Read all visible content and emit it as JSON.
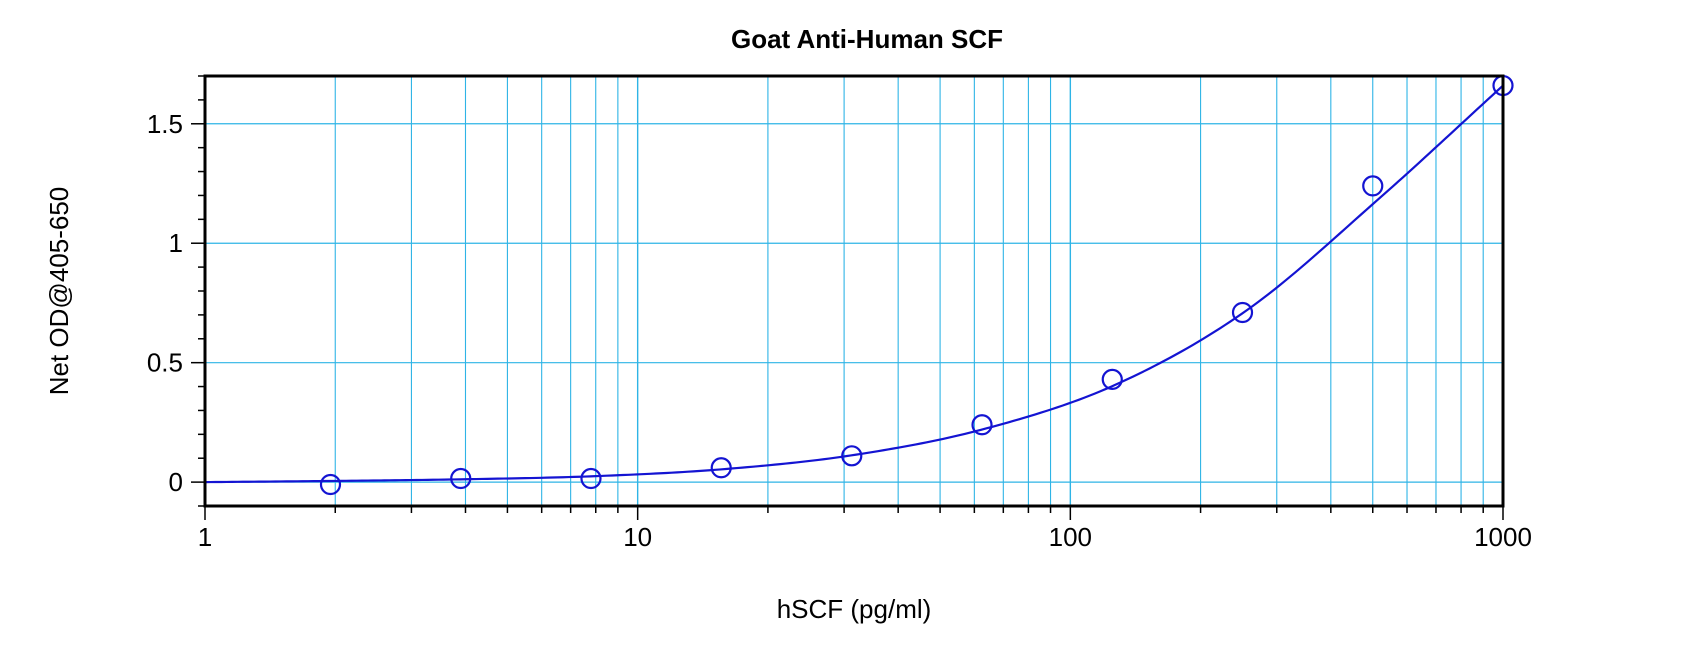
{
  "chart_data": {
    "type": "scatter",
    "title": "Goat Anti-Human SCF",
    "xlabel": "hSCF (pg/ml)",
    "ylabel": "Net OD@405-650",
    "xscale": "log",
    "xlim": [
      1,
      1000
    ],
    "ylim": [
      -0.1,
      1.7
    ],
    "x_ticks": [
      1,
      10,
      100,
      1000
    ],
    "x_tick_labels": [
      "1",
      "10",
      "100",
      "1000"
    ],
    "y_ticks": [
      0,
      0.5,
      1,
      1.5
    ],
    "y_tick_labels": [
      "0",
      "0.5",
      "1",
      "1.5"
    ],
    "grid": true,
    "legend": "none",
    "colors": {
      "points": "#1414d2",
      "curve": "#1414d2",
      "grid": "#2eb4e6",
      "frame": "#000000"
    },
    "series": [
      {
        "x": [
          1.95,
          3.9,
          7.8,
          15.6,
          31.25,
          62.5,
          125,
          250,
          500,
          1000
        ],
        "y": [
          -0.01,
          0.015,
          0.015,
          0.06,
          0.11,
          0.24,
          0.43,
          0.71,
          1.24,
          1.66
        ]
      }
    ],
    "fit_curve": {
      "x": [
        1,
        2,
        4,
        8,
        16,
        32,
        64,
        128,
        256,
        512,
        1000
      ],
      "y": [
        0.0,
        0.005,
        0.012,
        0.025,
        0.055,
        0.115,
        0.225,
        0.41,
        0.72,
        1.18,
        1.66
      ]
    }
  }
}
